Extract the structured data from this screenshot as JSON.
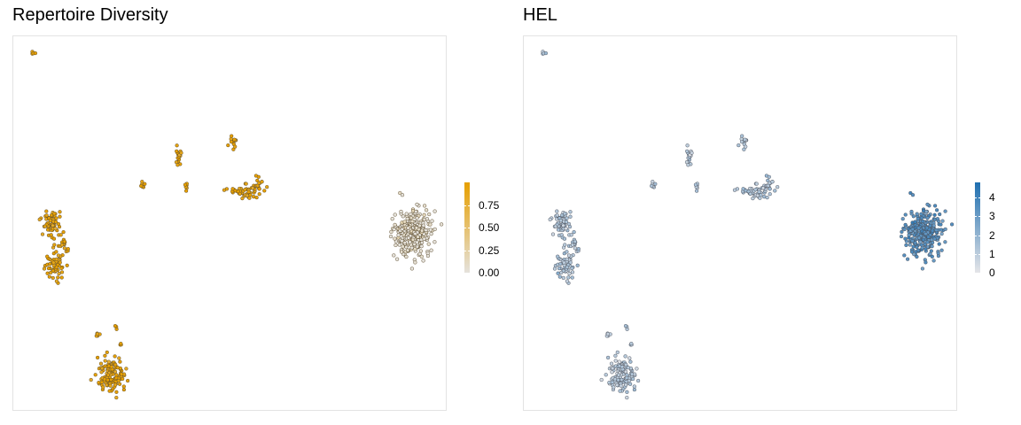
{
  "panels": [
    {
      "title": "Repertoire Diversity",
      "colors": {
        "low": "#e5e2dc",
        "high": "#e69f00",
        "outline": "#5a4a2a"
      },
      "legend": {
        "ticks": [
          "0.75",
          "0.50",
          "0.25",
          "0.00"
        ],
        "tick_values": [
          0.75,
          0.5,
          0.25,
          0.0
        ],
        "max": 1.0
      }
    },
    {
      "title": "HEL",
      "colors": {
        "low": "#e5e5e8",
        "high": "#1f6fb0",
        "outline": "#4a4f5a"
      },
      "legend": {
        "ticks": [
          "4",
          "3",
          "2",
          "1",
          "0"
        ],
        "tick_values": [
          4,
          3,
          2,
          1,
          0
        ],
        "max": 4.8
      }
    }
  ],
  "chart_data": [
    {
      "type": "scatter",
      "title": "Repertoire Diversity",
      "xlabel": "",
      "ylabel": "",
      "color_scale": {
        "low": "#e5e2dc",
        "high": "#e69f00",
        "range": [
          0,
          1
        ]
      },
      "legend_position": "right",
      "grid": false,
      "clusters": [
        {
          "x": 0.046,
          "y": 0.955,
          "sx": 0.003,
          "sy": 0.003,
          "n": 4,
          "value": 0.95
        },
        {
          "x": 0.085,
          "y": 0.495,
          "sx": 0.01,
          "sy": 0.02,
          "n": 60,
          "value": 0.95
        },
        {
          "x": 0.115,
          "y": 0.445,
          "sx": 0.005,
          "sy": 0.012,
          "n": 14,
          "value": 0.95
        },
        {
          "x": 0.095,
          "y": 0.395,
          "sx": 0.012,
          "sy": 0.02,
          "n": 60,
          "value": 0.95
        },
        {
          "x": 0.226,
          "y": 0.095,
          "sx": 0.016,
          "sy": 0.025,
          "n": 130,
          "value": 0.95
        },
        {
          "x": 0.195,
          "y": 0.2,
          "sx": 0.004,
          "sy": 0.004,
          "n": 5,
          "value": 0.95
        },
        {
          "x": 0.238,
          "y": 0.225,
          "sx": 0.003,
          "sy": 0.003,
          "n": 3,
          "value": 0.95
        },
        {
          "x": 0.254,
          "y": 0.175,
          "sx": 0.003,
          "sy": 0.003,
          "n": 3,
          "value": 0.95
        },
        {
          "x": 0.3,
          "y": 0.6,
          "sx": 0.004,
          "sy": 0.004,
          "n": 6,
          "value": 0.95
        },
        {
          "x": 0.382,
          "y": 0.68,
          "sx": 0.004,
          "sy": 0.012,
          "n": 16,
          "value": 0.95
        },
        {
          "x": 0.4,
          "y": 0.6,
          "sx": 0.003,
          "sy": 0.006,
          "n": 6,
          "value": 0.95
        },
        {
          "x": 0.508,
          "y": 0.715,
          "sx": 0.006,
          "sy": 0.01,
          "n": 12,
          "value": 0.95
        },
        {
          "x": 0.535,
          "y": 0.585,
          "sx": 0.018,
          "sy": 0.012,
          "n": 55,
          "value": 0.95
        },
        {
          "x": 0.57,
          "y": 0.598,
          "sx": 0.006,
          "sy": 0.012,
          "n": 14,
          "value": 0.95
        },
        {
          "x": 0.925,
          "y": 0.475,
          "sx": 0.02,
          "sy": 0.03,
          "n": 320,
          "value": 0.0
        }
      ]
    },
    {
      "type": "scatter",
      "title": "HEL",
      "xlabel": "",
      "ylabel": "",
      "color_scale": {
        "low": "#e5e5e8",
        "high": "#1f6fb0",
        "range": [
          0,
          4.8
        ]
      },
      "legend_position": "right",
      "grid": false,
      "clusters": [
        {
          "x": 0.046,
          "y": 0.955,
          "sx": 0.003,
          "sy": 0.003,
          "n": 4,
          "value": 1.0
        },
        {
          "x": 0.085,
          "y": 0.495,
          "sx": 0.01,
          "sy": 0.02,
          "n": 60,
          "value": 1.2
        },
        {
          "x": 0.115,
          "y": 0.445,
          "sx": 0.005,
          "sy": 0.012,
          "n": 14,
          "value": 1.2
        },
        {
          "x": 0.095,
          "y": 0.395,
          "sx": 0.012,
          "sy": 0.02,
          "n": 60,
          "value": 1.2
        },
        {
          "x": 0.226,
          "y": 0.095,
          "sx": 0.016,
          "sy": 0.025,
          "n": 130,
          "value": 1.0
        },
        {
          "x": 0.195,
          "y": 0.2,
          "sx": 0.004,
          "sy": 0.004,
          "n": 5,
          "value": 1.0
        },
        {
          "x": 0.238,
          "y": 0.225,
          "sx": 0.003,
          "sy": 0.003,
          "n": 3,
          "value": 1.0
        },
        {
          "x": 0.254,
          "y": 0.175,
          "sx": 0.003,
          "sy": 0.003,
          "n": 3,
          "value": 1.0
        },
        {
          "x": 0.3,
          "y": 0.6,
          "sx": 0.004,
          "sy": 0.004,
          "n": 6,
          "value": 1.0
        },
        {
          "x": 0.382,
          "y": 0.68,
          "sx": 0.004,
          "sy": 0.012,
          "n": 16,
          "value": 1.0
        },
        {
          "x": 0.4,
          "y": 0.6,
          "sx": 0.003,
          "sy": 0.006,
          "n": 6,
          "value": 1.0
        },
        {
          "x": 0.508,
          "y": 0.715,
          "sx": 0.006,
          "sy": 0.01,
          "n": 12,
          "value": 1.0
        },
        {
          "x": 0.535,
          "y": 0.585,
          "sx": 0.018,
          "sy": 0.012,
          "n": 55,
          "value": 1.2
        },
        {
          "x": 0.57,
          "y": 0.598,
          "sx": 0.006,
          "sy": 0.012,
          "n": 14,
          "value": 1.2
        },
        {
          "x": 0.925,
          "y": 0.475,
          "sx": 0.02,
          "sy": 0.03,
          "n": 320,
          "value": 3.4
        }
      ]
    }
  ]
}
